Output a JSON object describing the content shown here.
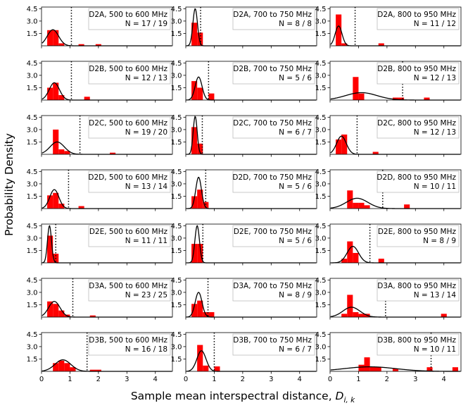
{
  "figure": {
    "ylabel": "Probability Density",
    "xlabel": "Sample mean interspectral distance, ",
    "xlabel_symbol": "D",
    "xlabel_sub": "i, k"
  },
  "chart_data": {
    "type": "histogram-grid",
    "xlim": [
      0,
      4.6
    ],
    "ylim": [
      0,
      4.7
    ],
    "x_ticks": [
      "0",
      "1",
      "2",
      "3",
      "4"
    ],
    "y_ticks": [
      "1.5",
      "3.0",
      "4.5"
    ],
    "bar_color": "#ff0000",
    "curve_color": "#000000",
    "panels": [
      {
        "label": "D2A, 500 to 600 MHz",
        "n": "N = 17 / 19",
        "vline": 1.05,
        "bins": [
          [
            0.2,
            0.4,
            1.9
          ],
          [
            0.4,
            0.6,
            1.9
          ],
          [
            0.6,
            0.8,
            0.3
          ],
          [
            1.3,
            1.5,
            0.2
          ],
          [
            1.9,
            2.1,
            0.2
          ]
        ],
        "curve": {
          "mu": 0.4,
          "sigma": 0.2,
          "peak": 1.95
        }
      },
      {
        "label": "D2A, 700 to 750 MHz",
        "n": "N = 8 / 8",
        "vline": 0.52,
        "bins": [
          [
            0.2,
            0.4,
            2.8
          ],
          [
            0.4,
            0.6,
            1.6
          ]
        ],
        "curve": {
          "mu": 0.33,
          "sigma": 0.08,
          "peak": 4.5
        }
      },
      {
        "label": "D2A, 800 to 950 MHz",
        "n": "N = 11 / 12",
        "vline": 0.88,
        "bins": [
          [
            0.2,
            0.4,
            3.8
          ],
          [
            0.4,
            0.6,
            0.3
          ],
          [
            1.7,
            1.9,
            0.3
          ]
        ],
        "curve": {
          "mu": 0.3,
          "sigma": 0.12,
          "peak": 2.4
        }
      },
      {
        "label": "D2B, 500 to 600 MHz",
        "n": "N = 12 / 13",
        "vline": 1.05,
        "bins": [
          [
            0.2,
            0.4,
            1.5
          ],
          [
            0.4,
            0.6,
            2.1
          ],
          [
            0.6,
            0.8,
            0.6
          ],
          [
            1.5,
            1.7,
            0.4
          ]
        ],
        "curve": {
          "mu": 0.45,
          "sigma": 0.18,
          "peak": 2.1
        }
      },
      {
        "label": "D2B, 700 to 750 MHz",
        "n": "N = 5 / 6",
        "vline": 0.8,
        "bins": [
          [
            0.2,
            0.4,
            2.3
          ],
          [
            0.4,
            0.6,
            1.5
          ],
          [
            0.8,
            1.0,
            0.8
          ]
        ],
        "curve": {
          "mu": 0.45,
          "sigma": 0.12,
          "peak": 2.8
        }
      },
      {
        "label": "D2B, 800 to 950 MHz",
        "n": "N = 12 / 13",
        "vline": 2.55,
        "bins": [
          [
            0.8,
            1.0,
            2.8
          ],
          [
            1.0,
            1.2,
            0.8
          ],
          [
            2.2,
            2.4,
            0.3
          ],
          [
            2.4,
            2.6,
            0.3
          ],
          [
            3.3,
            3.5,
            0.3
          ]
        ],
        "curve": {
          "mu": 1.1,
          "sigma": 0.55,
          "peak": 0.9
        }
      },
      {
        "label": "D2C, 500 to 600 MHz",
        "n": "N = 19 / 20",
        "vline": 1.35,
        "bins": [
          [
            0.4,
            0.6,
            3.0
          ],
          [
            0.6,
            0.8,
            0.6
          ],
          [
            0.8,
            1.0,
            0.4
          ],
          [
            2.4,
            2.6,
            0.2
          ]
        ],
        "curve": {
          "mu": 0.55,
          "sigma": 0.25,
          "peak": 1.5
        }
      },
      {
        "label": "D2C, 700 to 750 MHz",
        "n": "N = 6 / 7",
        "vline": 0.58,
        "bins": [
          [
            0.2,
            0.4,
            3.3
          ],
          [
            0.4,
            0.6,
            1.3
          ]
        ],
        "curve": {
          "mu": 0.33,
          "sigma": 0.07,
          "peak": 4.6
        }
      },
      {
        "label": "D2C, 800 to 950 MHz",
        "n": "N = 12 / 13",
        "vline": 0.95,
        "bins": [
          [
            0.2,
            0.4,
            1.8
          ],
          [
            0.4,
            0.6,
            2.4
          ],
          [
            1.5,
            1.7,
            0.3
          ]
        ],
        "curve": {
          "mu": 0.4,
          "sigma": 0.17,
          "peak": 2.2
        }
      },
      {
        "label": "D2D, 500 to 600 MHz",
        "n": "N = 13 / 14",
        "vline": 0.95,
        "bins": [
          [
            0.2,
            0.4,
            1.6
          ],
          [
            0.4,
            0.6,
            1.9
          ],
          [
            0.6,
            0.8,
            0.6
          ],
          [
            1.3,
            1.5,
            0.3
          ]
        ],
        "curve": {
          "mu": 0.45,
          "sigma": 0.16,
          "peak": 2.3
        }
      },
      {
        "label": "D2D, 700 to 750 MHz",
        "n": "N = 5 / 6",
        "vline": 0.7,
        "bins": [
          [
            0.2,
            0.4,
            1.5
          ],
          [
            0.4,
            0.6,
            2.3
          ],
          [
            0.6,
            0.8,
            0.8
          ]
        ],
        "curve": {
          "mu": 0.45,
          "sigma": 0.1,
          "peak": 3.8
        }
      },
      {
        "label": "D2D, 800 to 950 MHz",
        "n": "N = 10 / 11",
        "vline": 1.85,
        "bins": [
          [
            0.6,
            0.8,
            2.2
          ],
          [
            0.8,
            1.0,
            0.7
          ],
          [
            1.0,
            1.2,
            0.7
          ],
          [
            1.2,
            1.4,
            0.4
          ],
          [
            2.6,
            2.8,
            0.5
          ]
        ],
        "curve": {
          "mu": 0.95,
          "sigma": 0.38,
          "peak": 1.25
        }
      },
      {
        "label": "D2E, 500 to 600 MHz",
        "n": "N = 11 / 11",
        "vline": 0.5,
        "bins": [
          [
            0.2,
            0.4,
            3.3
          ],
          [
            0.4,
            0.6,
            1.1
          ]
        ],
        "curve": {
          "mu": 0.28,
          "sigma": 0.07,
          "peak": 4.5
        }
      },
      {
        "label": "D2E, 700 to 750 MHz",
        "n": "N = 5 / 6",
        "vline": 0.6,
        "bins": [
          [
            0.2,
            0.4,
            2.3
          ],
          [
            0.4,
            0.6,
            2.3
          ]
        ],
        "curve": {
          "mu": 0.4,
          "sigma": 0.08,
          "peak": 4.5
        }
      },
      {
        "label": "D2E, 800 to 950 MHz",
        "n": "N = 8 / 9",
        "vline": 1.4,
        "bins": [
          [
            0.4,
            0.6,
            0.5
          ],
          [
            0.6,
            0.8,
            2.6
          ],
          [
            0.8,
            1.0,
            1.2
          ],
          [
            1.7,
            1.9,
            0.5
          ]
        ],
        "curve": {
          "mu": 0.8,
          "sigma": 0.2,
          "peak": 2.0
        }
      },
      {
        "label": "D3A, 500 to 600 MHz",
        "n": "N = 23 / 25",
        "vline": 1.1,
        "bins": [
          [
            0.2,
            0.4,
            1.9
          ],
          [
            0.4,
            0.6,
            1.6
          ],
          [
            0.6,
            0.8,
            0.8
          ],
          [
            0.8,
            1.0,
            0.3
          ],
          [
            1.7,
            1.9,
            0.2
          ]
        ],
        "curve": {
          "mu": 0.45,
          "sigma": 0.2,
          "peak": 1.9
        }
      },
      {
        "label": "D3A, 700 to 750 MHz",
        "n": "N = 8 / 9",
        "vline": 0.78,
        "bins": [
          [
            0.2,
            0.4,
            1.6
          ],
          [
            0.4,
            0.6,
            2.0
          ],
          [
            0.6,
            0.8,
            0.6
          ],
          [
            0.8,
            1.0,
            0.6
          ]
        ],
        "curve": {
          "mu": 0.45,
          "sigma": 0.12,
          "peak": 3.0
        }
      },
      {
        "label": "D3A, 800 to 950 MHz",
        "n": "N = 13 / 14",
        "vline": 1.95,
        "bins": [
          [
            0.4,
            0.6,
            0.4
          ],
          [
            0.6,
            0.8,
            2.7
          ],
          [
            0.8,
            1.0,
            0.6
          ],
          [
            1.0,
            1.2,
            0.4
          ],
          [
            1.2,
            1.4,
            0.4
          ],
          [
            3.9,
            4.1,
            0.4
          ]
        ],
        "curve": {
          "mu": 0.75,
          "sigma": 0.3,
          "peak": 1.2
        }
      },
      {
        "label": "D3B, 500 to 600 MHz",
        "n": "N = 16 / 18",
        "vline": 1.6,
        "bins": [
          [
            0.4,
            0.6,
            1.0
          ],
          [
            0.6,
            0.8,
            1.3
          ],
          [
            0.8,
            1.0,
            1.0
          ],
          [
            1.0,
            1.2,
            0.5
          ],
          [
            1.7,
            2.1,
            0.2
          ]
        ],
        "curve": {
          "mu": 0.75,
          "sigma": 0.28,
          "peak": 1.4
        }
      },
      {
        "label": "D3B, 700 to 750 MHz",
        "n": "N = 6 / 7",
        "vline": 1.0,
        "bins": [
          [
            0.4,
            0.6,
            3.2
          ],
          [
            0.6,
            0.8,
            0.7
          ],
          [
            1.0,
            1.2,
            0.6
          ]
        ],
        "curve": {
          "mu": 0.55,
          "sigma": 0.16,
          "peak": 2.5
        }
      },
      {
        "label": "D3B, 800 to 950 MHz",
        "n": "N = 10 / 11",
        "vline": 3.55,
        "bins": [
          [
            1.0,
            1.2,
            0.8
          ],
          [
            1.2,
            1.4,
            1.7
          ],
          [
            1.4,
            1.8,
            0.5
          ],
          [
            2.2,
            2.4,
            0.3
          ],
          [
            3.4,
            3.6,
            0.5
          ],
          [
            4.3,
            4.5,
            0.5
          ]
        ],
        "curve": {
          "mu": 1.4,
          "sigma": 0.9,
          "peak": 0.55
        }
      }
    ]
  }
}
